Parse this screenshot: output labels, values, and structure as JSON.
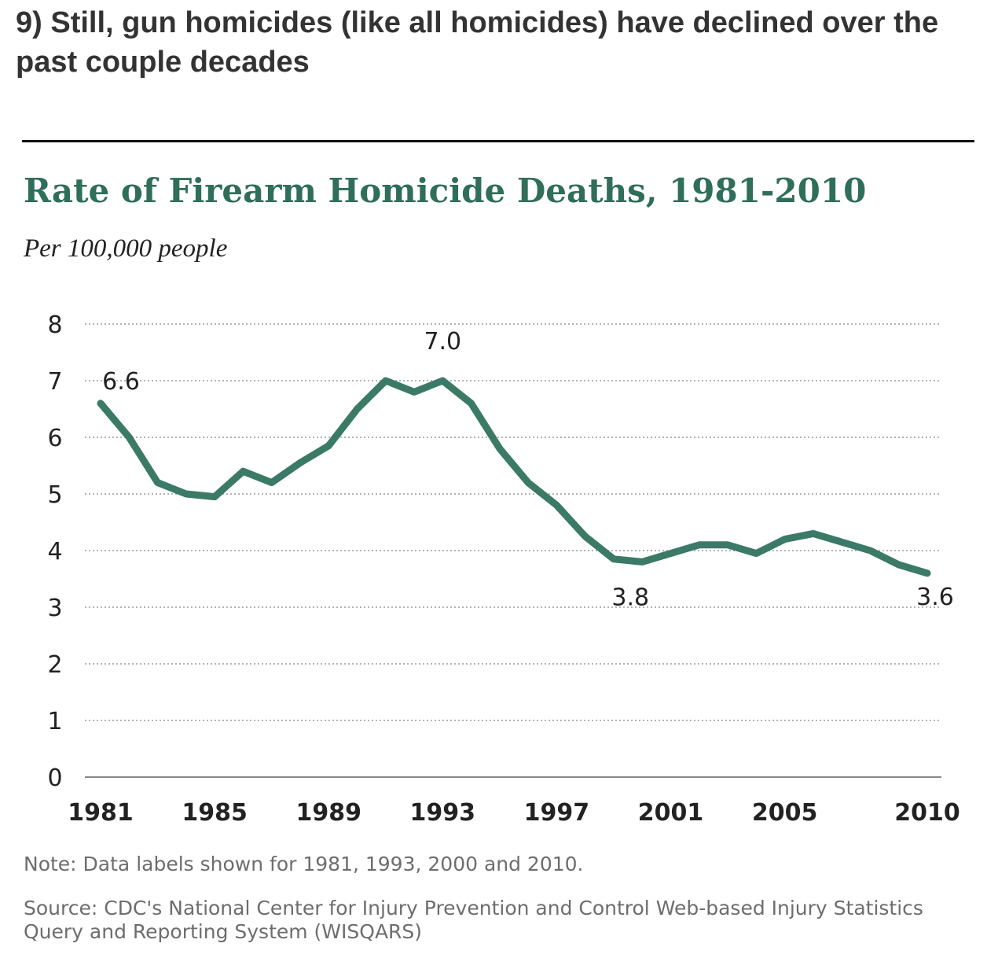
{
  "article": {
    "headline": "9) Still, gun homicides (like all homicides) have declined over the past couple decades"
  },
  "chart_data": {
    "type": "line",
    "title": "Rate of Firearm Homicide Deaths, 1981-2010",
    "subtitle": "Per 100,000 people",
    "x": [
      1981,
      1982,
      1983,
      1984,
      1985,
      1986,
      1987,
      1988,
      1989,
      1990,
      1991,
      1992,
      1993,
      1994,
      1995,
      1996,
      1997,
      1998,
      1999,
      2000,
      2001,
      2002,
      2003,
      2004,
      2005,
      2006,
      2007,
      2008,
      2009,
      2010
    ],
    "series": [
      {
        "values": [
          6.6,
          6.0,
          5.2,
          5.0,
          4.95,
          5.4,
          5.2,
          5.55,
          5.85,
          6.5,
          7.0,
          6.8,
          7.0,
          6.6,
          5.8,
          5.2,
          4.8,
          4.25,
          3.85,
          3.8,
          3.95,
          4.1,
          4.1,
          3.95,
          4.2,
          4.3,
          4.15,
          4.0,
          3.75,
          3.6
        ],
        "color": "#3b7a66"
      }
    ],
    "ylim": [
      0,
      8
    ],
    "yticks": [
      "0",
      "1",
      "2",
      "3",
      "4",
      "5",
      "6",
      "7",
      "8"
    ],
    "xtick_labels": [
      "1981",
      "1985",
      "1989",
      "1993",
      "1997",
      "2001",
      "2005",
      "2010"
    ],
    "data_labels": [
      {
        "x": 1981,
        "text": "6.6"
      },
      {
        "x": 1993,
        "text": "7.0"
      },
      {
        "x": 2000,
        "text": "3.8"
      },
      {
        "x": 2010,
        "text": "3.6"
      }
    ],
    "grid": "dotted horizontal",
    "xlabel": "",
    "ylabel": ""
  },
  "footer": {
    "note": "Note: Data labels shown for 1981, 1993, 2000 and 2010.",
    "source": "Source: CDC's National Center for Injury Prevention and Control Web-based Injury Statistics Query and Reporting System (WISQARS)"
  }
}
